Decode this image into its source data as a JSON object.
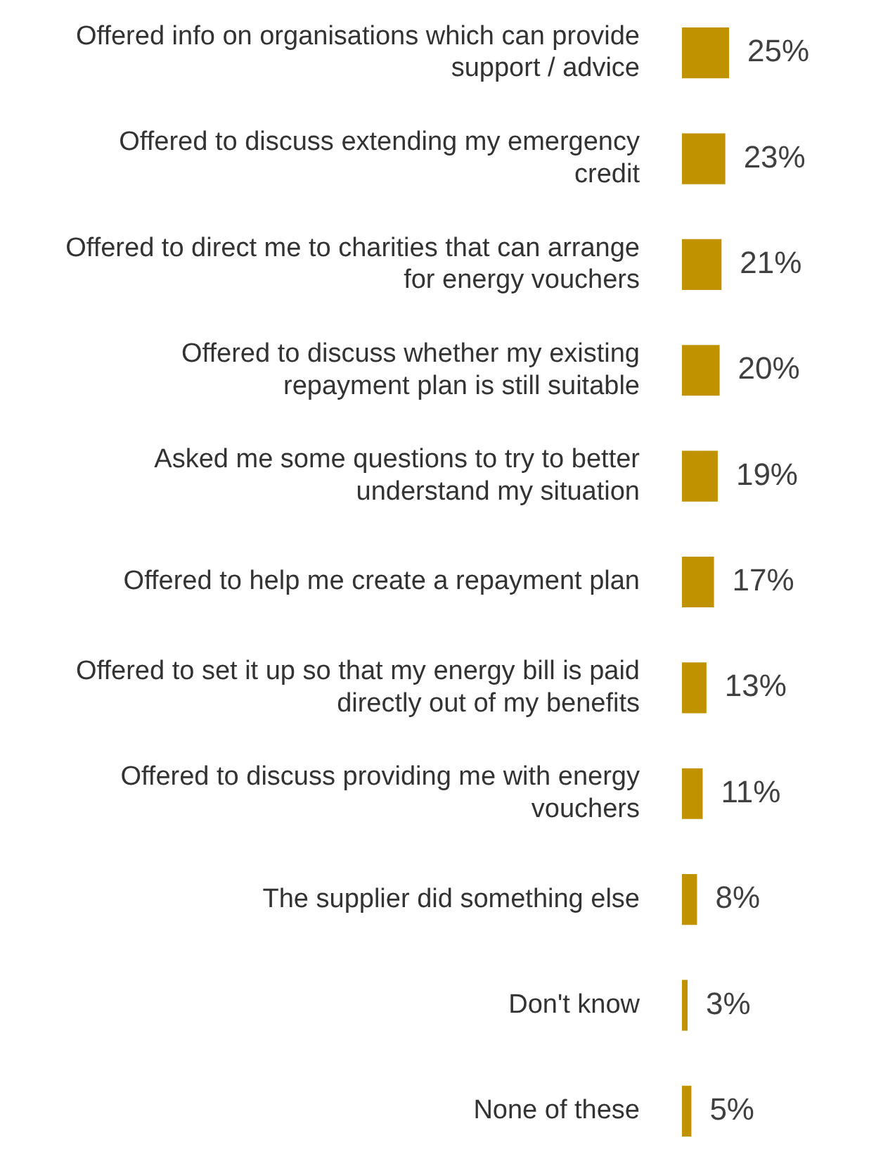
{
  "chart_data": {
    "type": "bar",
    "orientation": "horizontal",
    "categories": [
      "Offered info on organisations which can provide support / advice",
      "Offered to discuss extending my emergency credit",
      "Offered to direct me to charities that can arrange for energy vouchers",
      "Offered to discuss whether my existing repayment plan is still suitable",
      "Asked me some questions to try to better understand my situation",
      "Offered to help me create a repayment plan",
      "Offered to set it up so that my energy bill is paid directly out of my benefits",
      "Offered to discuss providing me with energy vouchers",
      "The supplier did something else",
      "Don't know",
      "None of these"
    ],
    "values": [
      25,
      23,
      21,
      20,
      19,
      17,
      13,
      11,
      8,
      3,
      5
    ],
    "value_labels": [
      "25%",
      "23%",
      "21%",
      "20%",
      "19%",
      "17%",
      "13%",
      "11%",
      "8%",
      "3%",
      "5%"
    ],
    "color": "#c19200"
  }
}
